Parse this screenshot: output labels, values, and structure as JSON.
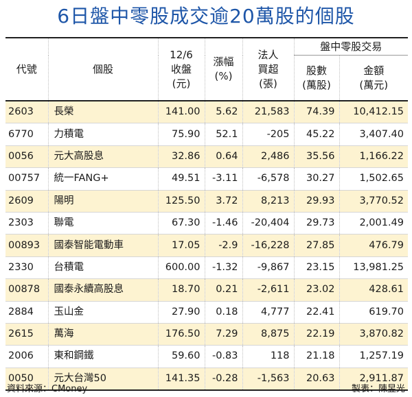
{
  "title": "6日盤中零股成交逾20萬股的個股",
  "headers": {
    "code": "代號",
    "name": "個股",
    "close": [
      "12/6",
      "收盤",
      "(元)"
    ],
    "change": [
      "漲幅",
      "(%)"
    ],
    "institutional": [
      "法人",
      "買超",
      "(張)"
    ],
    "group": "盤中零股交易",
    "shares": [
      "股數",
      "(萬股)"
    ],
    "amount": [
      "金額",
      "(萬元)"
    ]
  },
  "rows": [
    {
      "code": "2603",
      "name": "長榮",
      "close": "141.00",
      "change": "5.62",
      "inst": "21,583",
      "shares": "74.39",
      "amount": "10,412.15"
    },
    {
      "code": "6770",
      "name": "力積電",
      "close": "75.90",
      "change": "52.1",
      "inst": "-205",
      "shares": "45.22",
      "amount": "3,407.40"
    },
    {
      "code": "0056",
      "name": "元大高股息",
      "close": "32.86",
      "change": "0.64",
      "inst": "2,486",
      "shares": "35.56",
      "amount": "1,166.22"
    },
    {
      "code": "00757",
      "name": "統一FANG+",
      "close": "49.51",
      "change": "-3.11",
      "inst": "-6,578",
      "shares": "30.27",
      "amount": "1,502.65"
    },
    {
      "code": "2609",
      "name": "陽明",
      "close": "125.50",
      "change": "3.72",
      "inst": "8,213",
      "shares": "29.93",
      "amount": "3,770.52"
    },
    {
      "code": "2303",
      "name": "聯電",
      "close": "67.30",
      "change": "-1.46",
      "inst": "-20,404",
      "shares": "29.73",
      "amount": "2,001.49"
    },
    {
      "code": "00893",
      "name": "國泰智能電動車",
      "close": "17.05",
      "change": "-2.9",
      "inst": "-16,228",
      "shares": "27.85",
      "amount": "476.79"
    },
    {
      "code": "2330",
      "name": "台積電",
      "close": "600.00",
      "change": "-1.32",
      "inst": "-9,867",
      "shares": "23.15",
      "amount": "13,981.25"
    },
    {
      "code": "00878",
      "name": "國泰永續高股息",
      "close": "18.70",
      "change": "0.21",
      "inst": "-2,611",
      "shares": "23.02",
      "amount": "428.61"
    },
    {
      "code": "2884",
      "name": "玉山金",
      "close": "27.90",
      "change": "0.18",
      "inst": "4,777",
      "shares": "22.41",
      "amount": "619.70"
    },
    {
      "code": "2615",
      "name": "萬海",
      "close": "176.50",
      "change": "7.29",
      "inst": "8,875",
      "shares": "22.19",
      "amount": "3,870.82"
    },
    {
      "code": "2006",
      "name": "東和鋼鐵",
      "close": "59.60",
      "change": "-0.83",
      "inst": "118",
      "shares": "21.18",
      "amount": "1,257.19"
    },
    {
      "code": "0050",
      "name": "元大台灣50",
      "close": "141.35",
      "change": "-0.28",
      "inst": "-1,563",
      "shares": "20.63",
      "amount": "2,911.87"
    }
  ],
  "footer": {
    "source": "資料來源：CMoney",
    "credit": "製表：陳昱光"
  },
  "colors": {
    "title": "#1e56a8",
    "stripe": "#fdf3d1"
  }
}
